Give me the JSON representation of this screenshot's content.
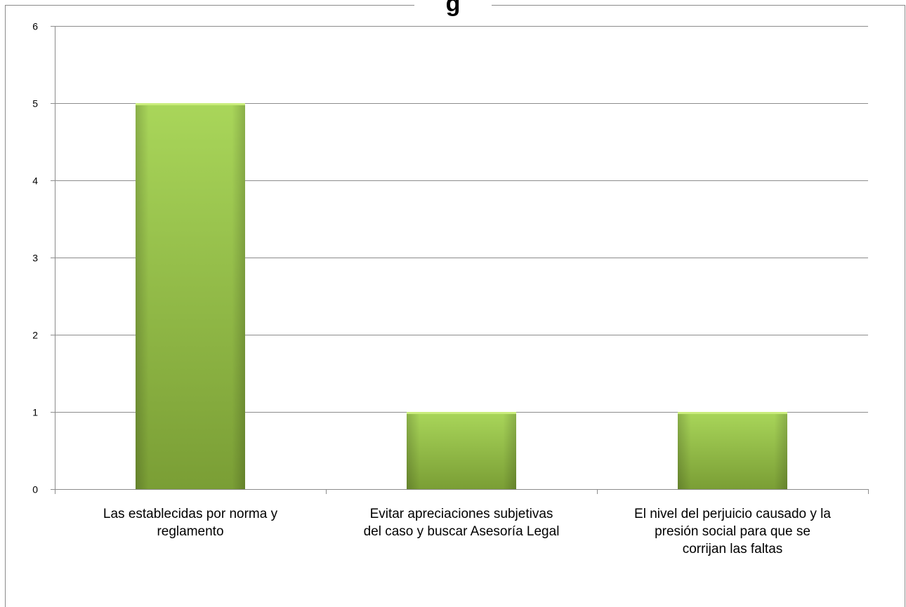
{
  "chart_data": {
    "type": "bar",
    "title": "g",
    "categories": [
      [
        "Las establecidas por norma y",
        "reglamento"
      ],
      [
        "Evitar apreciaciones subjetivas",
        "del caso y buscar Asesoría Legal"
      ],
      [
        "El nivel del perjuicio causado y la",
        "presión social para que se",
        "corrijan las faltas"
      ]
    ],
    "values": [
      5,
      1,
      1
    ],
    "ylim": [
      0,
      6
    ],
    "yticks": [
      "0",
      "1",
      "2",
      "3",
      "4",
      "5",
      "6"
    ],
    "xlabel": "",
    "ylabel": "",
    "grid": true,
    "bar_color": "#8cc63e"
  }
}
